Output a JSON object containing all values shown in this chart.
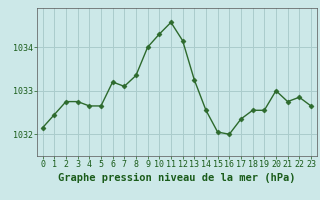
{
  "x": [
    0,
    1,
    2,
    3,
    4,
    5,
    6,
    7,
    8,
    9,
    10,
    11,
    12,
    13,
    14,
    15,
    16,
    17,
    18,
    19,
    20,
    21,
    22,
    23
  ],
  "y": [
    1032.15,
    1032.45,
    1032.75,
    1032.75,
    1032.65,
    1032.65,
    1033.2,
    1033.1,
    1033.35,
    1034.0,
    1034.3,
    1034.57,
    1034.15,
    1033.25,
    1032.55,
    1032.05,
    1032.0,
    1032.35,
    1032.55,
    1032.55,
    1033.0,
    1032.75,
    1032.85,
    1032.65
  ],
  "line_color": "#2d6a2d",
  "marker": "D",
  "marker_size": 2.5,
  "bg_color": "#cce8e8",
  "grid_color": "#aacccc",
  "plot_bg": "#cce8e8",
  "axis_text_color": "#1a5c1a",
  "xlabel": "Graphe pression niveau de la mer (hPa)",
  "xlabel_fontsize": 7.5,
  "xlabel_bg": "#2d8c2d",
  "xlabel_text_color": "#003300",
  "ylim": [
    1031.5,
    1034.9
  ],
  "yticks": [
    1032,
    1033,
    1034
  ],
  "xticks": [
    0,
    1,
    2,
    3,
    4,
    5,
    6,
    7,
    8,
    9,
    10,
    11,
    12,
    13,
    14,
    15,
    16,
    17,
    18,
    19,
    20,
    21,
    22,
    23
  ],
  "tick_fontsize": 6,
  "line_width": 1.0,
  "spine_color": "#555555"
}
